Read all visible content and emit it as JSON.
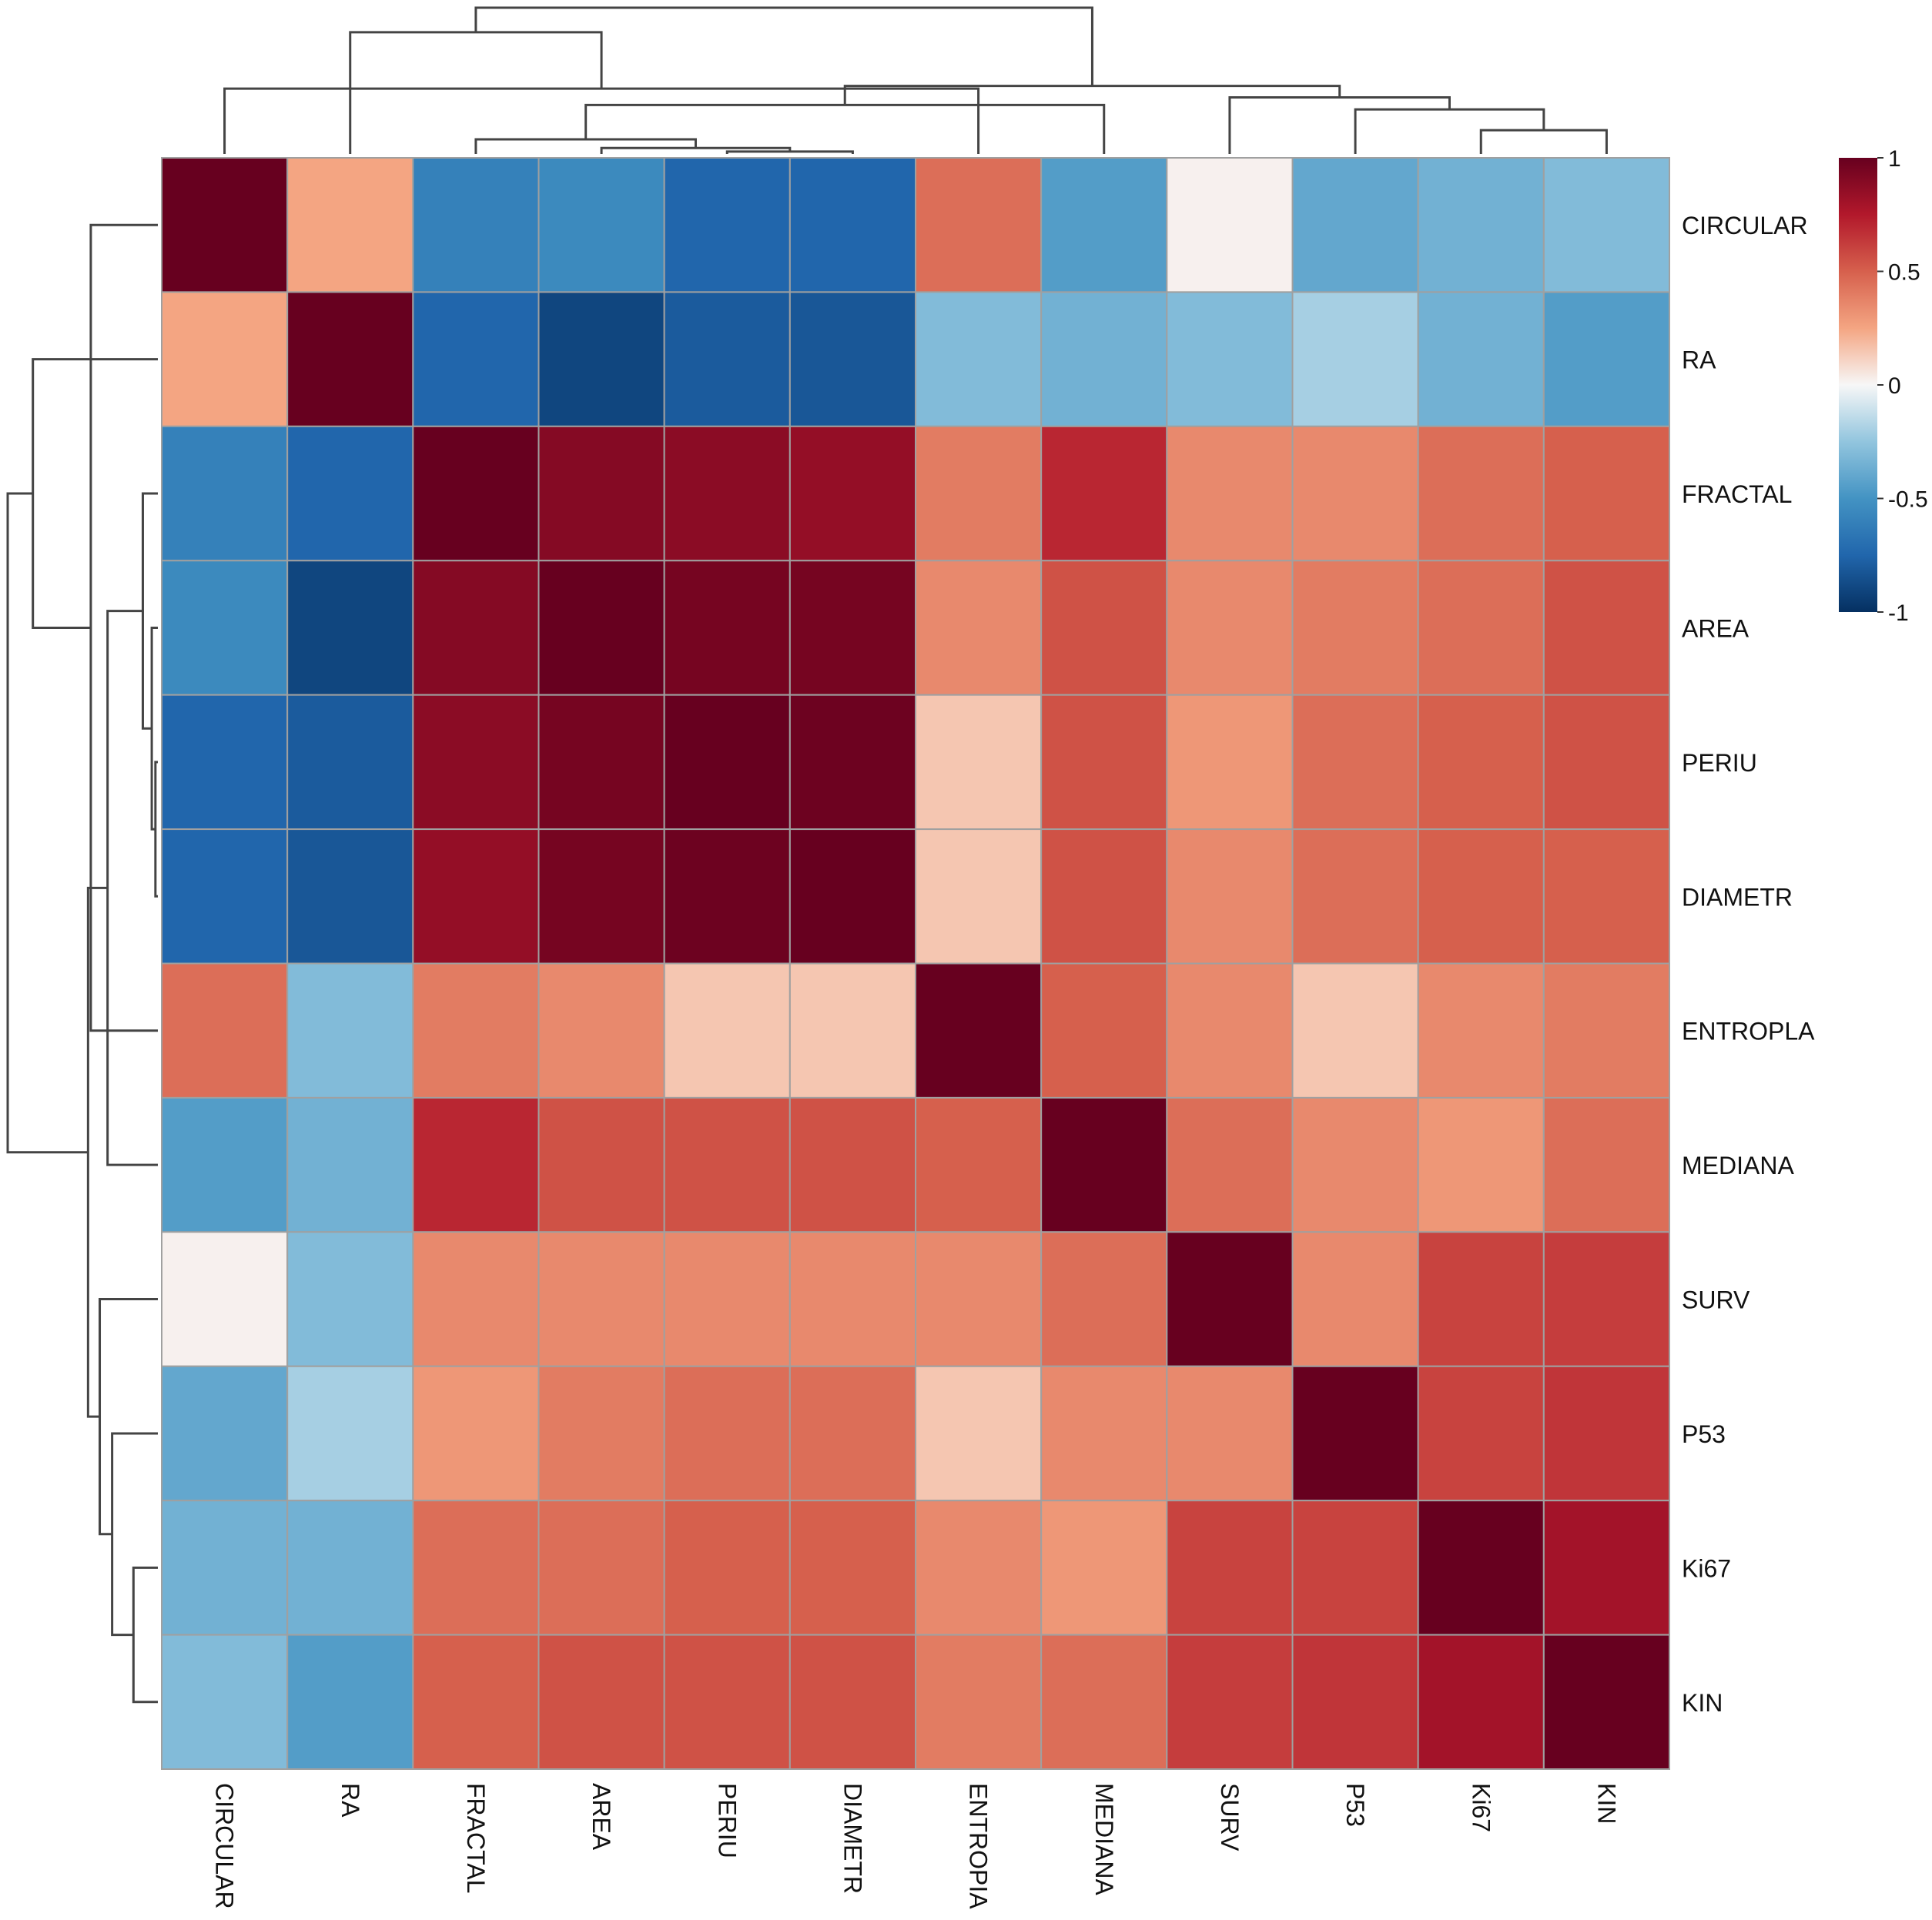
{
  "chart_data": {
    "type": "heatmap",
    "title": "",
    "xlabel": "",
    "ylabel": "",
    "columns": [
      "CIRCULAR",
      "RA",
      "FRACTAL",
      "AREA",
      "PERIU",
      "DIAMETR",
      "ENTROPIA",
      "MEDIANA",
      "SURV",
      "P53",
      "Ki67",
      "KIN"
    ],
    "rows": [
      "CIRCULAR",
      "RA",
      "FRACTAL",
      "AREA",
      "PERIU",
      "DIAMETR",
      "ENTROPLA",
      "MEDIANA",
      "SURV",
      "P53",
      "Ki67",
      "KIN"
    ],
    "values": [
      [
        1.0,
        0.25,
        -0.6,
        -0.55,
        -0.75,
        -0.75,
        0.45,
        -0.45,
        0.02,
        -0.4,
        -0.35,
        -0.3
      ],
      [
        0.25,
        1.0,
        -0.75,
        -0.9,
        -0.8,
        -0.82,
        -0.3,
        -0.35,
        -0.3,
        -0.2,
        -0.35,
        -0.45
      ],
      [
        -0.6,
        -0.75,
        1.0,
        0.9,
        0.88,
        0.85,
        0.4,
        0.7,
        0.35,
        0.35,
        0.45,
        0.5
      ],
      [
        -0.55,
        -0.9,
        0.9,
        1.0,
        0.95,
        0.95,
        0.35,
        0.55,
        0.35,
        0.4,
        0.45,
        0.55
      ],
      [
        -0.75,
        -0.8,
        0.88,
        0.95,
        1.0,
        0.98,
        0.15,
        0.55,
        0.3,
        0.45,
        0.5,
        0.55
      ],
      [
        -0.75,
        -0.82,
        0.85,
        0.95,
        0.98,
        1.0,
        0.15,
        0.55,
        0.35,
        0.45,
        0.5,
        0.5
      ],
      [
        0.45,
        -0.3,
        0.4,
        0.35,
        0.15,
        0.15,
        1.0,
        0.5,
        0.35,
        0.15,
        0.35,
        0.4
      ],
      [
        -0.45,
        -0.35,
        0.7,
        0.55,
        0.55,
        0.55,
        0.5,
        1.0,
        0.45,
        0.35,
        0.3,
        0.45
      ],
      [
        0.02,
        -0.3,
        0.35,
        0.35,
        0.35,
        0.35,
        0.35,
        0.45,
        1.0,
        0.35,
        0.6,
        0.62
      ],
      [
        -0.4,
        -0.2,
        0.3,
        0.4,
        0.45,
        0.45,
        0.15,
        0.35,
        0.35,
        1.0,
        0.6,
        0.65
      ],
      [
        -0.35,
        -0.35,
        0.45,
        0.45,
        0.5,
        0.5,
        0.35,
        0.3,
        0.6,
        0.6,
        1.0,
        0.8
      ],
      [
        -0.3,
        -0.45,
        0.5,
        0.55,
        0.55,
        0.55,
        0.4,
        0.45,
        0.62,
        0.65,
        0.8,
        1.0
      ]
    ],
    "colorbar": {
      "min": -1,
      "max": 1,
      "ticks": [
        "1",
        "0.5",
        "0",
        "-0.5",
        "-1"
      ]
    },
    "colors": {
      "negative": "#053061",
      "neutral": "#f7f7f7",
      "positive": "#67001f",
      "cell_border": "#a0a0a0",
      "dendrogram": "#444444"
    },
    "legend_position": "top-right",
    "grid": true,
    "dendrograms": [
      "top",
      "left"
    ]
  }
}
